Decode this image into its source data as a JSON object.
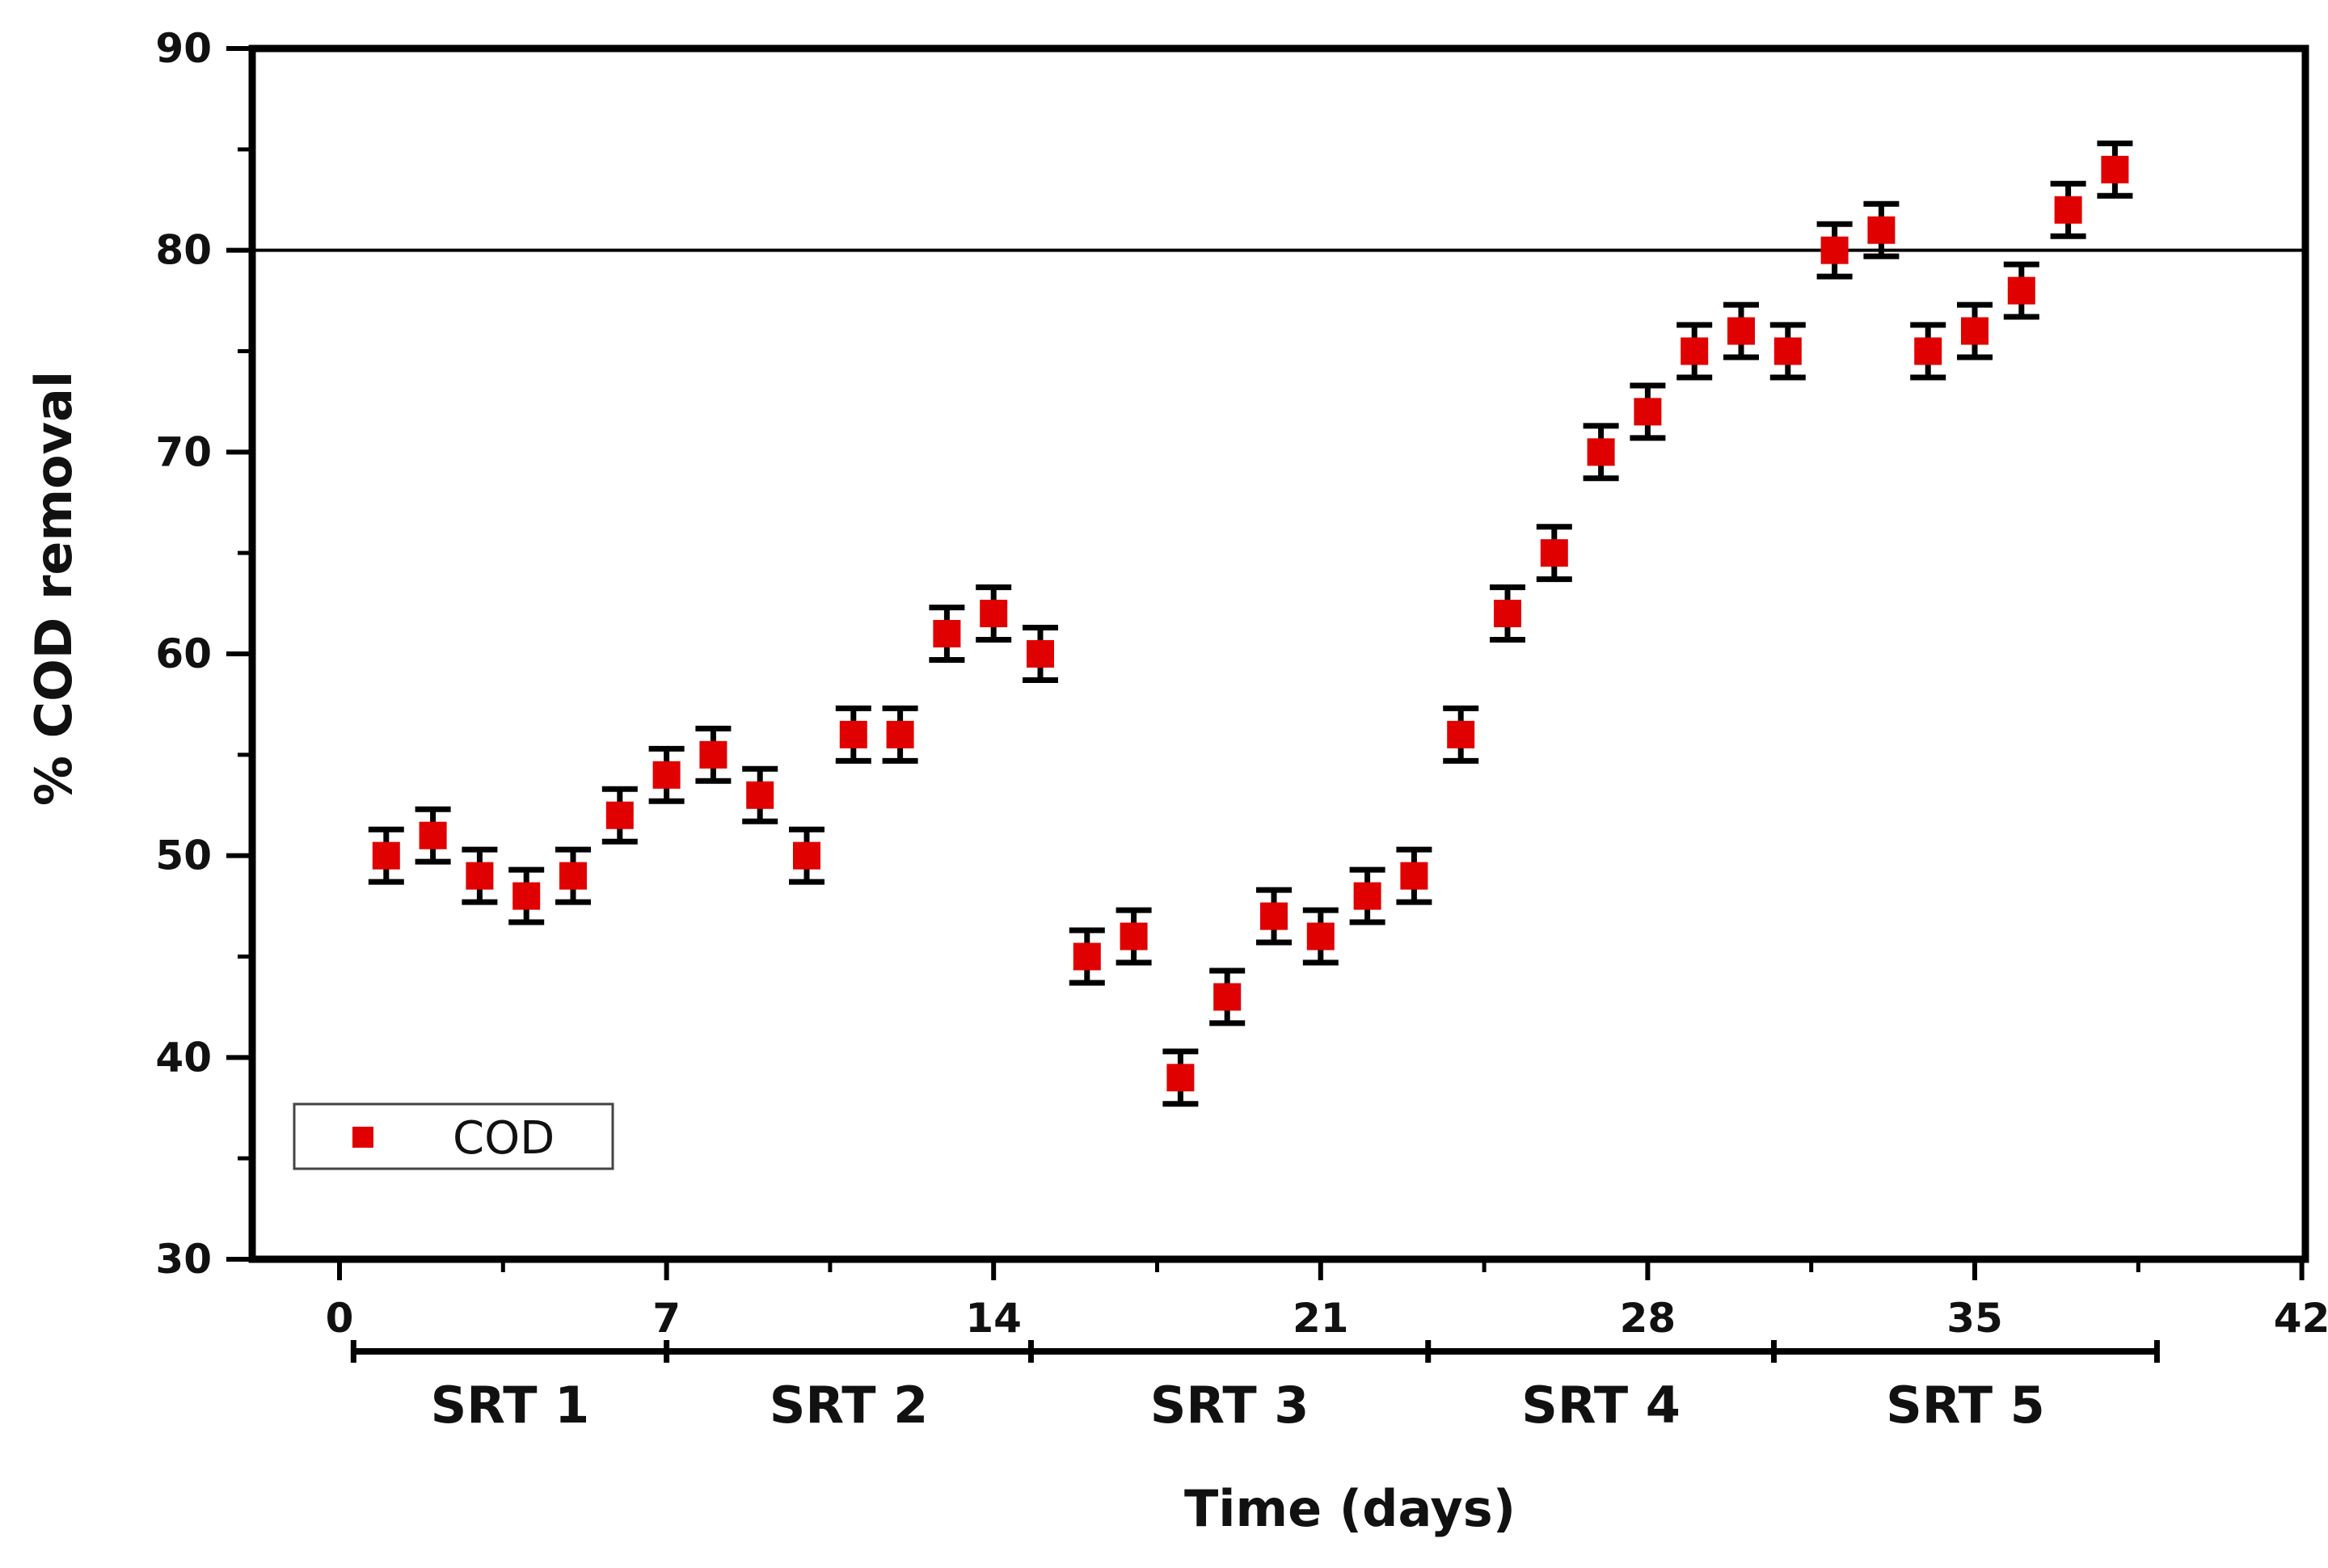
{
  "chart_data": {
    "type": "scatter",
    "xlabel": "Time (days)",
    "ylabel": "% COD removal",
    "xlim": [
      0,
      42
    ],
    "ylim": [
      30,
      90
    ],
    "x_ticks": [
      0,
      7,
      14,
      21,
      28,
      35,
      42
    ],
    "y_ticks": [
      30,
      40,
      50,
      60,
      70,
      80,
      90
    ],
    "reference_line": 80,
    "legend": {
      "position": "bottom-left",
      "entries": [
        "COD"
      ]
    },
    "error_bar": 1.3,
    "series": [
      {
        "name": "COD",
        "color": "#e00000",
        "x": [
          1,
          2,
          3,
          4,
          5,
          6,
          7,
          8,
          9,
          10,
          11,
          12,
          13,
          14,
          15,
          16,
          17,
          18,
          19,
          20,
          21,
          22,
          23,
          24,
          25,
          26,
          27,
          28,
          29,
          30,
          31,
          32,
          33,
          34,
          35,
          36,
          37,
          38
        ],
        "y": [
          50,
          51,
          49,
          48,
          49,
          52,
          54,
          55,
          53,
          50,
          56,
          56,
          61,
          62,
          60,
          45,
          46,
          39,
          43,
          47,
          46,
          48,
          49,
          56,
          62,
          65,
          70,
          72,
          75,
          76,
          75,
          80,
          81,
          75,
          76,
          78,
          82,
          84
        ]
      }
    ],
    "srt_periods": [
      {
        "label": "SRT 1",
        "start": 0.3,
        "end": 7.0
      },
      {
        "label": "SRT 2",
        "start": 7.0,
        "end": 14.8
      },
      {
        "label": "SRT 3",
        "start": 14.8,
        "end": 23.3
      },
      {
        "label": "SRT 4",
        "start": 23.3,
        "end": 30.7
      },
      {
        "label": "SRT 5",
        "start": 30.7,
        "end": 38.9
      }
    ]
  }
}
